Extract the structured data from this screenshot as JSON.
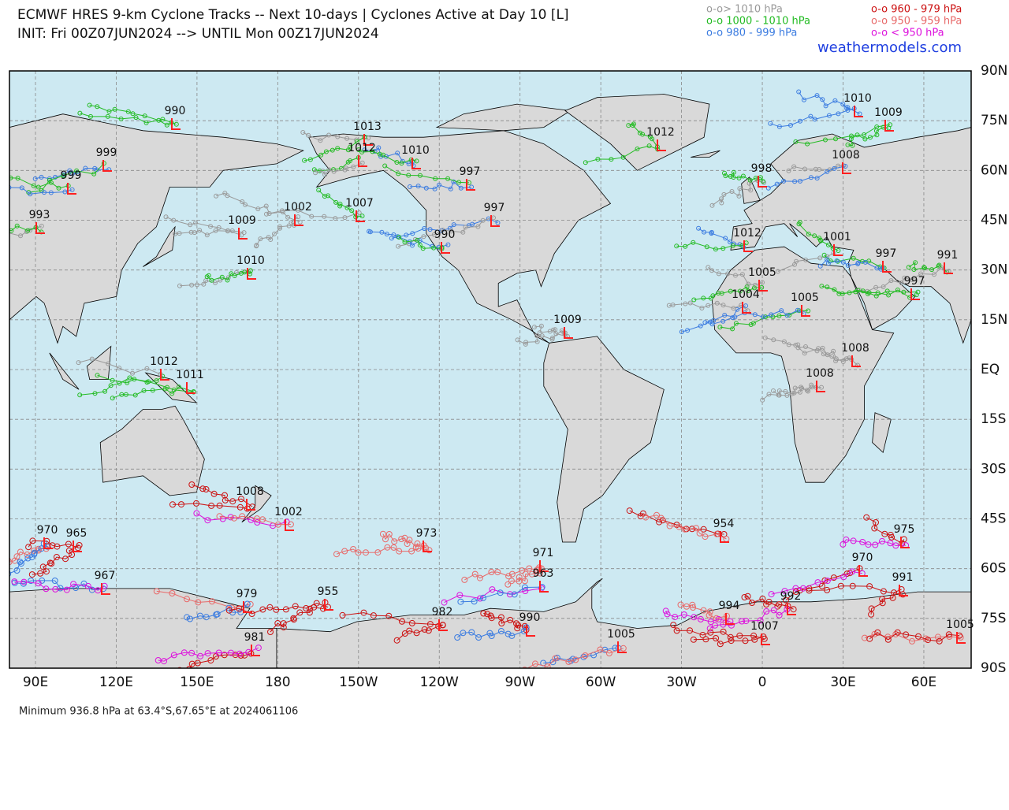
{
  "header": {
    "title": "ECMWF HRES 9-km Cyclone Tracks -- Next 10-days | Cyclones Active at Day 10 [L]",
    "subtitle": "INIT: Fri 00Z07JUN2024 --> UNTIL Mon 00Z17JUN2024",
    "source": "weathermodels.com"
  },
  "legend": [
    {
      "label": "o-o> 1010 hPa",
      "color": "#999999"
    },
    {
      "label": "o-o 1000 - 1010 hPa",
      "color": "#22bb22"
    },
    {
      "label": "o-o 980 - 999 hPa",
      "color": "#3a7be0"
    },
    {
      "label": "o-o 960 - 979 hPa",
      "color": "#cc1111"
    },
    {
      "label": "o-o 950 - 959 hPa",
      "color": "#e86a6a"
    },
    {
      "label": "o-o < 950 hPa",
      "color": "#dd11dd"
    }
  ],
  "map": {
    "lon_labels": [
      "90E",
      "120E",
      "150E",
      "180",
      "150W",
      "120W",
      "90W",
      "60W",
      "30W",
      "0",
      "30E",
      "60E"
    ],
    "lat_labels": [
      "90N",
      "75N",
      "60N",
      "45N",
      "30N",
      "15N",
      "EQ",
      "15S",
      "30S",
      "45S",
      "60S",
      "75S",
      "90S"
    ],
    "lows": [
      990,
      1013,
      1012,
      1010,
      999,
      999,
      997,
      998,
      1012,
      1010,
      1009,
      1008,
      993,
      1009,
      1002,
      1007,
      997,
      990,
      1012,
      1001,
      997,
      991,
      997,
      1010,
      1005,
      1004,
      1005,
      1009,
      1008,
      1012,
      1008,
      1011,
      1008,
      1002,
      973,
      970,
      965,
      954,
      975,
      971,
      963,
      967,
      970,
      991,
      979,
      955,
      982,
      990,
      994,
      992,
      981,
      1005,
      1007,
      1005
    ]
  },
  "footer": "Minimum 936.8 hPa at 63.4°S,67.65°E at 2024061106"
}
